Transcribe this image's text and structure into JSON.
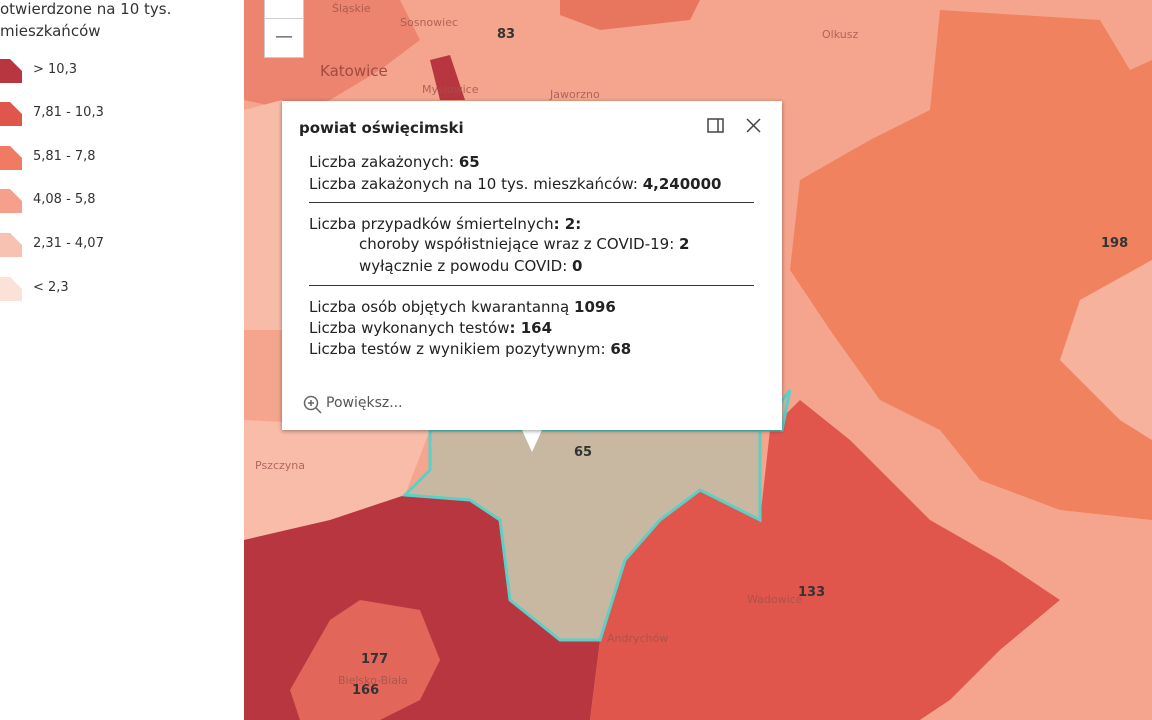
{
  "legend": {
    "title": [
      "otwierdzone na 10 tys.",
      "mieszkańców"
    ],
    "items": [
      {
        "label": "> 10,3",
        "color": "#b8363f"
      },
      {
        "label": "7,81 - 10,3",
        "color": "#e0564c"
      },
      {
        "label": "5,81 - 7,8",
        "color": "#f07a62"
      },
      {
        "label": "4,08 - 5,8",
        "color": "#f5a08a"
      },
      {
        "label": "2,31 - 4,07",
        "color": "#f8c2b2"
      },
      {
        "label": "< 2,3",
        "color": "#fbe2d9"
      }
    ]
  },
  "zoom": {
    "out": "—"
  },
  "map": {
    "places": [
      "Śląskie",
      "Sosnowiec",
      "Olkusz",
      "Katowice",
      "Mysłowice",
      "Jaworzno",
      "Pszczyna",
      "Wadowice",
      "Andrychów",
      "Bielsko-Biała"
    ],
    "counts": [
      "83",
      "198",
      "65",
      "133",
      "177",
      "166"
    ]
  },
  "popup": {
    "title": "powiat oświęcimski",
    "lines": [
      {
        "label": "Liczba zakażonych: ",
        "value": "65"
      },
      {
        "label": "Liczba zakażonych na 10 tys. mieszkańców: ",
        "value": "4,240000"
      },
      {
        "label": "Liczba przypadków śmiertelnych",
        "value": ": 2:"
      },
      {
        "label": "choroby współistniejące wraz z COVID-19: ",
        "value": "2"
      },
      {
        "label": "wyłącznie z powodu COVID: ",
        "value": "0"
      },
      {
        "label": "Liczba osób objętych kwarantanną ",
        "value": "1096"
      },
      {
        "label": "Liczba wykonanych testów",
        "value": ": 164"
      },
      {
        "label": "Liczba testów z wynikiem pozytywnym: ",
        "value": "68"
      }
    ],
    "zoom_link": "Powiększ..."
  }
}
